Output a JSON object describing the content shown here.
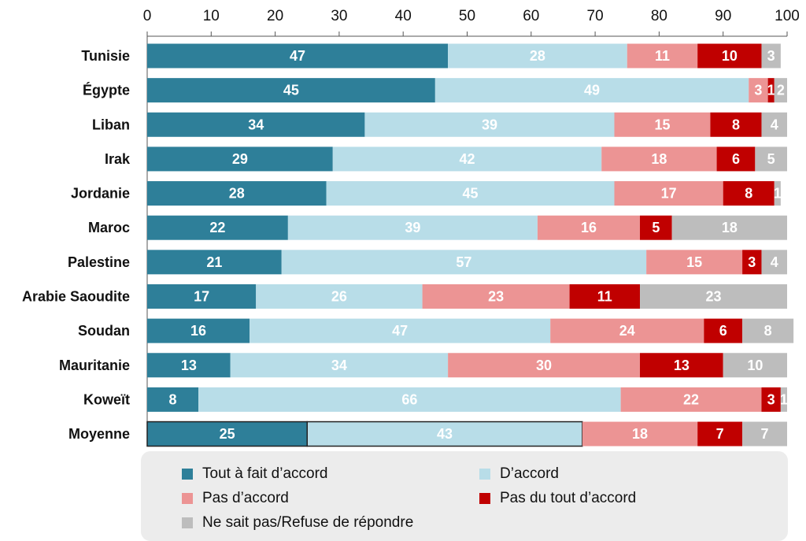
{
  "chart_data": {
    "type": "bar",
    "orientation": "horizontal",
    "stacked": true,
    "xlim": [
      0,
      100
    ],
    "xticks": [
      "0",
      "10",
      "20",
      "30",
      "40",
      "50",
      "60",
      "70",
      "80",
      "90",
      "100"
    ],
    "categories": [
      "Tunisie",
      "Égypte",
      "Liban",
      "Irak",
      "Jordanie",
      "Maroc",
      "Palestine",
      "Arabie Saoudite",
      "Soudan",
      "Mauritanie",
      "Koweït",
      "Moyenne"
    ],
    "series": [
      {
        "name": "Tout à fait d’accord",
        "color": "#2e7f99",
        "values": [
          47,
          45,
          34,
          29,
          28,
          22,
          21,
          17,
          16,
          13,
          8,
          25
        ]
      },
      {
        "name": "D’accord",
        "color": "#b8dde8",
        "values": [
          28,
          49,
          39,
          42,
          45,
          39,
          57,
          26,
          47,
          34,
          66,
          43
        ]
      },
      {
        "name": "Pas d’accord",
        "color": "#ec9494",
        "values": [
          11,
          3,
          15,
          18,
          17,
          16,
          15,
          23,
          24,
          30,
          22,
          18
        ]
      },
      {
        "name": "Pas du tout d’accord",
        "color": "#c00000",
        "values": [
          10,
          1,
          8,
          6,
          8,
          5,
          3,
          11,
          6,
          13,
          3,
          7
        ]
      },
      {
        "name": "Ne sait pas/Refuse de répondre",
        "color": "#bdbdbd",
        "values": [
          3,
          2,
          4,
          5,
          1,
          18,
          4,
          23,
          8,
          10,
          1,
          7
        ]
      }
    ],
    "legend_position": "bottom",
    "grid": false
  }
}
